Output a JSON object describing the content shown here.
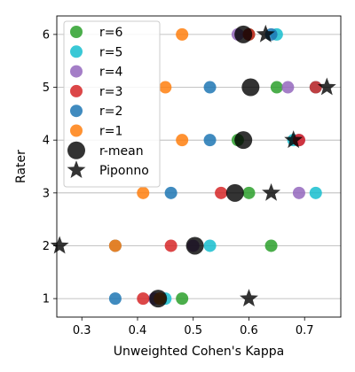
{
  "chart_data": {
    "type": "scatter",
    "xlabel": "Unweighted Cohen's Kappa",
    "ylabel": "Rater",
    "xlim": [
      0.255,
      0.765
    ],
    "ylim": [
      0.65,
      6.35
    ],
    "xticks": [
      0.3,
      0.4,
      0.5,
      0.6,
      0.7
    ],
    "xtick_labels": [
      "0.3",
      "0.4",
      "0.5",
      "0.6",
      "0.7"
    ],
    "yticks": [
      1,
      2,
      3,
      4,
      5,
      6
    ],
    "ytick_labels": [
      "1",
      "2",
      "3",
      "4",
      "5",
      "6"
    ],
    "grid": "horizontal",
    "legend_position": "top-left",
    "series": [
      {
        "name": "r=6",
        "marker": "circle",
        "color": "#2ca02c",
        "points": [
          [
            0.48,
            1
          ],
          [
            0.64,
            2
          ],
          [
            0.6,
            3
          ],
          [
            0.58,
            4
          ],
          [
            0.65,
            5
          ],
          [
            0.6,
            6
          ]
        ]
      },
      {
        "name": "r=5",
        "marker": "circle",
        "color": "#17becf",
        "points": [
          [
            0.45,
            1
          ],
          [
            0.53,
            2
          ],
          [
            0.72,
            3
          ],
          [
            0.68,
            4
          ],
          [
            0.72,
            5
          ],
          [
            0.65,
            6
          ]
        ]
      },
      {
        "name": "r=4",
        "marker": "circle",
        "color": "#9467bd",
        "points": [
          [
            0.43,
            1
          ],
          [
            0.5,
            2
          ],
          [
            0.69,
            3
          ],
          [
            0.69,
            4
          ],
          [
            0.67,
            5
          ],
          [
            0.58,
            6
          ]
        ]
      },
      {
        "name": "r=3",
        "marker": "circle",
        "color": "#d62728",
        "points": [
          [
            0.41,
            1
          ],
          [
            0.46,
            2
          ],
          [
            0.55,
            3
          ],
          [
            0.69,
            4
          ],
          [
            0.72,
            5
          ],
          [
            0.6,
            6
          ]
        ]
      },
      {
        "name": "r=2",
        "marker": "circle",
        "color": "#1f77b4",
        "points": [
          [
            0.36,
            1
          ],
          [
            0.36,
            2
          ],
          [
            0.46,
            3
          ],
          [
            0.53,
            4
          ],
          [
            0.53,
            5
          ],
          [
            0.64,
            6
          ]
        ]
      },
      {
        "name": "r=1",
        "marker": "circle",
        "color": "#ff7f0e",
        "points": [
          [
            0.44,
            1
          ],
          [
            0.36,
            2
          ],
          [
            0.41,
            3
          ],
          [
            0.48,
            4
          ],
          [
            0.45,
            5
          ],
          [
            0.48,
            6
          ]
        ]
      },
      {
        "name": "r-mean",
        "marker": "large-circle",
        "color": "#000000",
        "points": [
          [
            0.437,
            1
          ],
          [
            0.503,
            2
          ],
          [
            0.575,
            3
          ],
          [
            0.59,
            4
          ],
          [
            0.603,
            5
          ],
          [
            0.59,
            6
          ]
        ]
      },
      {
        "name": "Piponno",
        "marker": "star",
        "color": "#000000",
        "points": [
          [
            0.6,
            1
          ],
          [
            0.26,
            2
          ],
          [
            0.64,
            3
          ],
          [
            0.68,
            4
          ],
          [
            0.74,
            5
          ],
          [
            0.63,
            6
          ]
        ]
      }
    ]
  }
}
